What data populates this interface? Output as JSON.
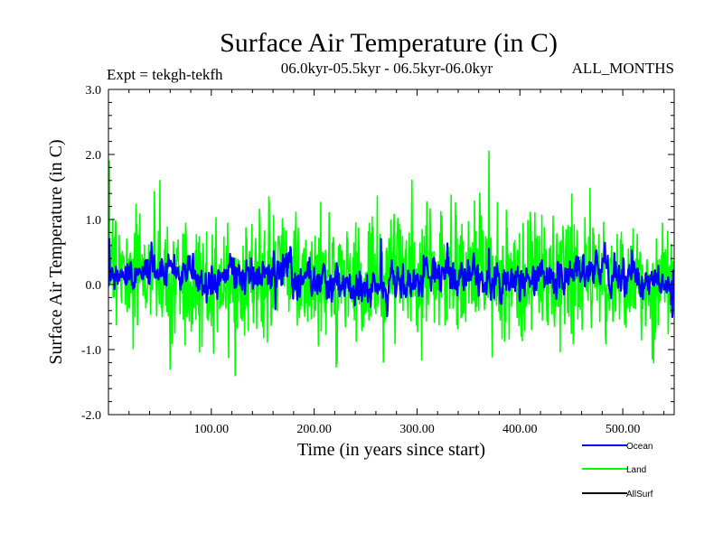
{
  "chart_data": {
    "type": "line",
    "title": "Surface Air Temperature (in C)",
    "subtitle_left": "Expt = tekgh-tekfh",
    "subtitle_center": "06.0kyr-05.5kyr - 06.5kyr-06.0kyr",
    "subtitle_right": "ALL_MONTHS",
    "xlabel": "Time (in years since start)",
    "ylabel": "Surface Air Temperature (in C)",
    "xlim": [
      0,
      550
    ],
    "ylim": [
      -2.0,
      3.0
    ],
    "xticks": [
      100,
      200,
      300,
      400,
      500
    ],
    "xtick_labels": [
      "100.00",
      "200.00",
      "300.00",
      "400.00",
      "500.00"
    ],
    "yticks": [
      -2.0,
      -1.0,
      0.0,
      1.0,
      2.0,
      3.0
    ],
    "ytick_labels": [
      "-2.0",
      "-1.0",
      "0.0",
      "1.0",
      "2.0",
      "3.0"
    ],
    "grid": false,
    "legend_position": "bottom-right",
    "series": [
      {
        "name": "Land",
        "color": "#00ff00",
        "mean": 0.1,
        "noise_amplitude": 0.45,
        "range": [
          -1.4,
          2.05
        ],
        "keypoints": [
          [
            1,
            1.9
          ],
          [
            3,
            0.6
          ],
          [
            50,
            1.6
          ],
          [
            60,
            -1.3
          ],
          [
            123,
            -1.4
          ],
          [
            370,
            2.05
          ],
          [
            530,
            -1.2
          ]
        ]
      },
      {
        "name": "Ocean",
        "color": "#0000ff",
        "mean": 0.1,
        "noise_amplitude": 0.15,
        "range": [
          -0.5,
          0.8
        ],
        "keypoints": [
          [
            1,
            0.7
          ],
          [
            265,
            0.7
          ],
          [
            370,
            0.55
          ],
          [
            548,
            -0.5
          ]
        ]
      },
      {
        "name": "AllSurf",
        "color": "#000000"
      }
    ],
    "legend": [
      {
        "label": "Ocean",
        "color": "#0000ff"
      },
      {
        "label": "Land",
        "color": "#00ff00"
      },
      {
        "label": "AllSurf",
        "color": "#000000"
      }
    ]
  }
}
